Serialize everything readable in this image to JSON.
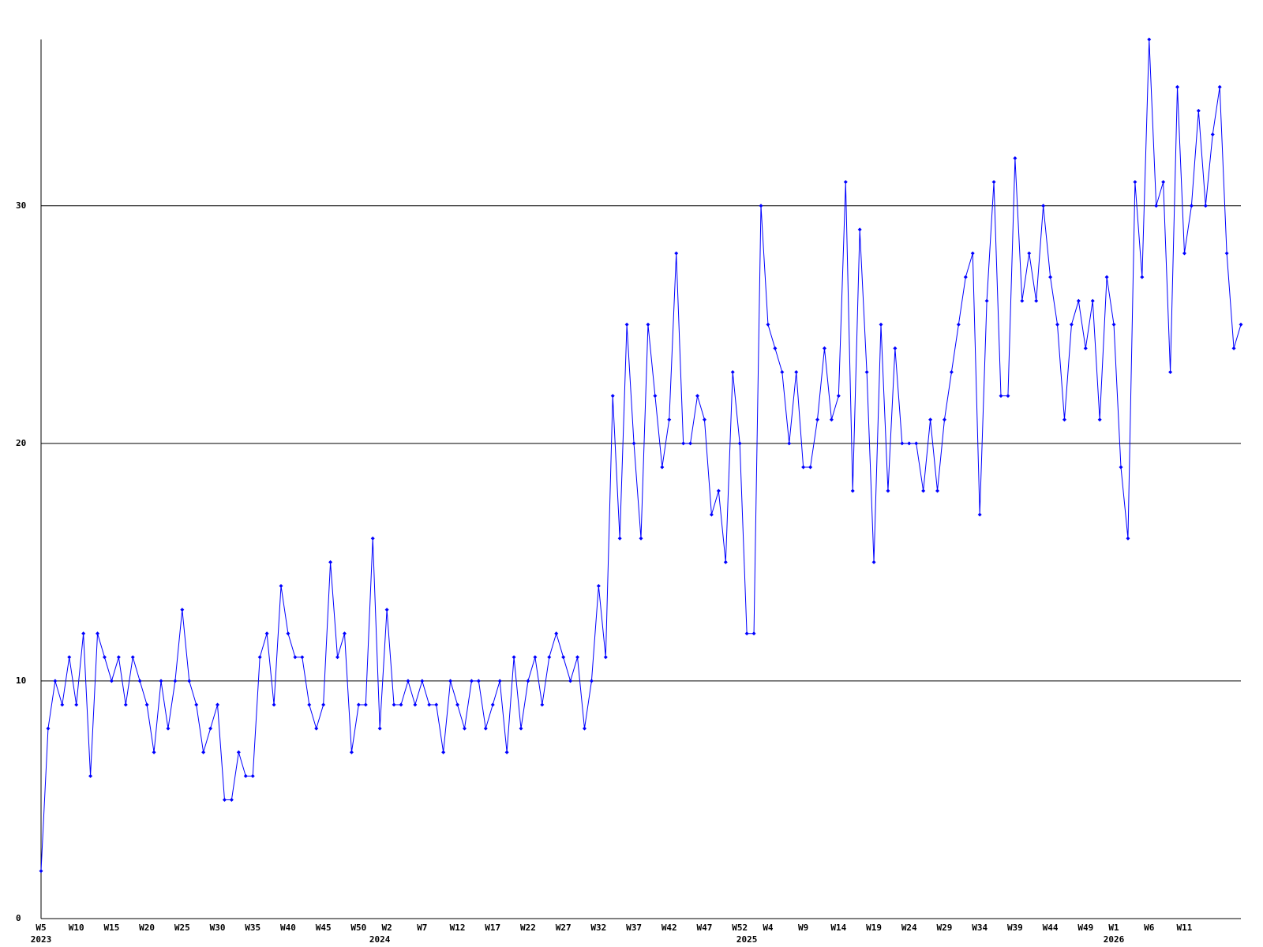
{
  "chart_data": {
    "type": "line",
    "categories": [
      "W5",
      null,
      null,
      null,
      null,
      "W10",
      null,
      null,
      null,
      null,
      "W15",
      null,
      null,
      null,
      null,
      "W20",
      null,
      null,
      null,
      null,
      "W25",
      null,
      null,
      null,
      null,
      "W30",
      null,
      null,
      null,
      null,
      "W35",
      null,
      null,
      null,
      null,
      "W40",
      null,
      null,
      null,
      null,
      "W45",
      null,
      null,
      null,
      null,
      "W50",
      null,
      null,
      null,
      "W2",
      null,
      null,
      null,
      null,
      "W7",
      null,
      null,
      null,
      null,
      "W12",
      null,
      null,
      null,
      null,
      "W17",
      null,
      null,
      null,
      null,
      "W22",
      null,
      null,
      null,
      null,
      "W27",
      null,
      null,
      null,
      null,
      "W32",
      null,
      null,
      null,
      null,
      "W37",
      null,
      null,
      null,
      null,
      "W42",
      null,
      null,
      null,
      null,
      "W47",
      null,
      null,
      null,
      null,
      "W52",
      null,
      null,
      null,
      "W4",
      null,
      null,
      null,
      null,
      "W9",
      null,
      null,
      null,
      null,
      "W14",
      null,
      null,
      null,
      null,
      "W19",
      null,
      null,
      null,
      null,
      "W24",
      null,
      null,
      null,
      null,
      "W29",
      null,
      null,
      null,
      null,
      "W34",
      null,
      null,
      null,
      null,
      "W39",
      null,
      null,
      null,
      null,
      "W44",
      null,
      null,
      null,
      null,
      "W49",
      null,
      null,
      null,
      "W1",
      null,
      null,
      null,
      null,
      "W6",
      null,
      null,
      null,
      null,
      "W11",
      null,
      null,
      null,
      null,
      null,
      null,
      null,
      null
    ],
    "category_years": [
      "2023",
      null,
      null,
      null,
      null,
      null,
      null,
      null,
      null,
      null,
      null,
      null,
      null,
      null,
      null,
      null,
      null,
      null,
      null,
      null,
      null,
      null,
      null,
      null,
      null,
      null,
      null,
      null,
      null,
      null,
      null,
      null,
      null,
      null,
      null,
      null,
      null,
      null,
      null,
      null,
      null,
      null,
      null,
      null,
      null,
      null,
      null,
      null,
      "2024",
      null,
      null,
      null,
      null,
      null,
      null,
      null,
      null,
      null,
      null,
      null,
      null,
      null,
      null,
      null,
      null,
      null,
      null,
      null,
      null,
      null,
      null,
      null,
      null,
      null,
      null,
      null,
      null,
      null,
      null,
      null,
      null,
      null,
      null,
      null,
      null,
      null,
      null,
      null,
      null,
      null,
      null,
      null,
      null,
      null,
      null,
      null,
      null,
      null,
      null,
      null,
      "2025",
      null,
      null,
      null,
      null,
      null,
      null,
      null,
      null,
      null,
      null,
      null,
      null,
      null,
      null,
      null,
      null,
      null,
      null,
      null,
      null,
      null,
      null,
      null,
      null,
      null,
      null,
      null,
      null,
      null,
      null,
      null,
      null,
      null,
      null,
      null,
      null,
      null,
      null,
      null,
      null,
      null,
      null,
      null,
      null,
      null,
      null,
      null,
      null,
      null,
      null,
      null,
      "2026",
      null,
      null,
      null,
      null,
      null,
      null,
      null,
      null,
      null,
      null,
      null,
      null,
      null,
      null,
      null,
      null,
      null,
      null
    ],
    "values": [
      2,
      8,
      10,
      9,
      11,
      9,
      12,
      6,
      12,
      11,
      10,
      11,
      9,
      11,
      10,
      9,
      7,
      10,
      8,
      10,
      13,
      10,
      9,
      7,
      8,
      9,
      5,
      5,
      7,
      6,
      6,
      11,
      12,
      9,
      14,
      12,
      11,
      11,
      9,
      8,
      9,
      15,
      11,
      12,
      7,
      9,
      9,
      16,
      8,
      13,
      9,
      9,
      10,
      9,
      10,
      9,
      9,
      7,
      10,
      9,
      8,
      10,
      10,
      8,
      9,
      10,
      7,
      11,
      8,
      10,
      11,
      9,
      11,
      12,
      11,
      10,
      11,
      8,
      10,
      14,
      11,
      22,
      16,
      25,
      20,
      16,
      25,
      22,
      19,
      21,
      28,
      20,
      20,
      22,
      21,
      17,
      18,
      15,
      23,
      20,
      12,
      12,
      30,
      25,
      24,
      23,
      20,
      23,
      19,
      19,
      21,
      24,
      21,
      22,
      31,
      18,
      29,
      23,
      15,
      25,
      18,
      24,
      20,
      20,
      20,
      18,
      21,
      18,
      21,
      23,
      25,
      27,
      28,
      17,
      26,
      31,
      22,
      22,
      32,
      26,
      28,
      26,
      30,
      27,
      25,
      21,
      25,
      26,
      24,
      26,
      21,
      27,
      25,
      19,
      16,
      31,
      27,
      37,
      30,
      31,
      23,
      35,
      28,
      30,
      34,
      30,
      33,
      35,
      28,
      24,
      25
    ],
    "color": "#0000ff",
    "ylim": [
      0,
      37
    ],
    "yticks": [
      0,
      10,
      20,
      30
    ],
    "grid": true
  }
}
